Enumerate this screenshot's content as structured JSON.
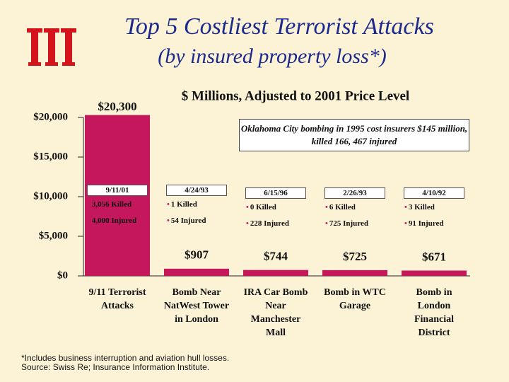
{
  "chart_data": {
    "type": "bar",
    "title": "Top 5 Costliest Terrorist Attacks",
    "subtitle": "(by insured property loss*)",
    "axis_title": "$ Millions, Adjusted to 2001 Price Level",
    "categories": [
      "9/11 Terrorist\nAttacks",
      "Bomb Near\nNatWest Tower\nin London",
      "IRA Car Bomb\nNear\nManchester\nMall",
      "Bomb in WTC\nGarage",
      "Bomb in\nLondon\nFinancial\nDistrict"
    ],
    "values": [
      20300,
      907,
      744,
      725,
      671
    ],
    "value_labels": [
      "$20,300",
      "$907",
      "$744",
      "$725",
      "$671"
    ],
    "color": "#c4175c",
    "ylim": [
      0,
      20000
    ],
    "yticks": [
      {
        "value": 0,
        "label": "$0"
      },
      {
        "value": 5000,
        "label": "$5,000"
      },
      {
        "value": 10000,
        "label": "$10,000"
      },
      {
        "value": 15000,
        "label": "$15,000"
      },
      {
        "value": 20000,
        "label": "$20,000"
      }
    ],
    "annotation": "Oklahoma City bombing in 1995 cost insurers $145 million, killed 166, 467 injured",
    "details": [
      {
        "date": "9/11/01",
        "killed": "3,056 Killed",
        "injured": "4,000 Injured"
      },
      {
        "date": "4/24/93",
        "killed": "1 Killed",
        "injured": "54 Injured"
      },
      {
        "date": "6/15/96",
        "killed": "0 Killed",
        "injured": "228 Injured"
      },
      {
        "date": "2/26/93",
        "killed": "6 Killed",
        "injured": "725 Injured"
      },
      {
        "date": "4/10/92",
        "killed": "3 Killed",
        "injured": "91 Injured"
      }
    ],
    "footnotes": [
      "*Includes business interruption and aviation hull losses.",
      "Source: Swiss Re; Insurance Information Institute."
    ]
  }
}
